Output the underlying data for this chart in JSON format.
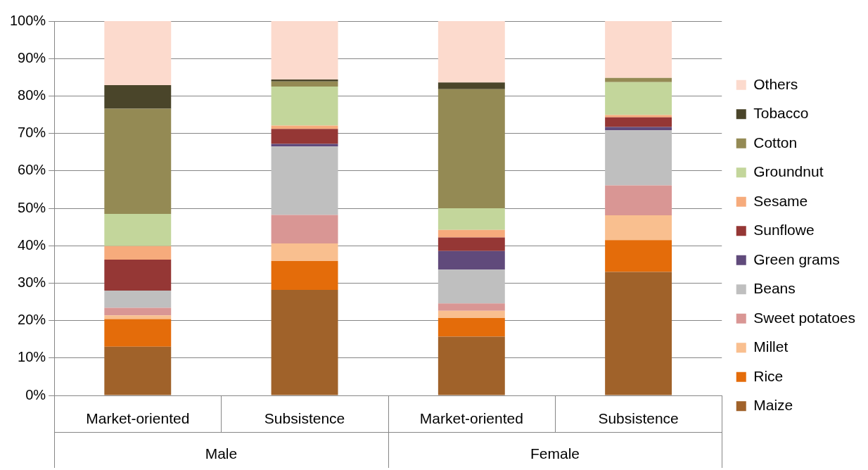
{
  "chart_data": {
    "type": "bar",
    "stacked": true,
    "categories": [
      "Market-oriented",
      "Subsistence",
      "Market-oriented",
      "Subsistence"
    ],
    "series": [
      {
        "name": "Maize",
        "color": "#a0622a",
        "values": [
          13.0,
          28.2,
          15.7,
          33.0
        ]
      },
      {
        "name": "Rice",
        "color": "#e46c0a",
        "values": [
          7.4,
          7.7,
          5.0,
          8.5
        ]
      },
      {
        "name": "Millet",
        "color": "#f9bf8f",
        "values": [
          1.0,
          4.7,
          1.9,
          6.6
        ]
      },
      {
        "name": "Sweet potatoes",
        "color": "#d99694",
        "values": [
          2.0,
          7.6,
          2.0,
          8.0
        ]
      },
      {
        "name": "Beans",
        "color": "#bfbfbf",
        "values": [
          4.6,
          18.3,
          9.0,
          14.7
        ]
      },
      {
        "name": "Green grams",
        "color": "#604a7b",
        "values": [
          0,
          0.7,
          5.0,
          0.9
        ]
      },
      {
        "name": "Sunflowe",
        "color": "#953735",
        "values": [
          8.3,
          4.0,
          3.6,
          2.6
        ]
      },
      {
        "name": "Sesame",
        "color": "#f6ab7c",
        "values": [
          3.6,
          0.9,
          2.0,
          0.6
        ]
      },
      {
        "name": "Groundnut",
        "color": "#c3d69b",
        "values": [
          8.6,
          10.4,
          5.8,
          8.8
        ]
      },
      {
        "name": "Cotton",
        "color": "#948a54",
        "values": [
          28.1,
          1.4,
          31.8,
          1.1
        ]
      },
      {
        "name": "Tobacco",
        "color": "#4a452a",
        "values": [
          6.3,
          0.5,
          1.8,
          0
        ]
      },
      {
        "name": "Others",
        "color": "#fcdacd",
        "values": [
          17.1,
          15.6,
          16.4,
          15.2
        ]
      }
    ],
    "ylim": [
      0,
      100
    ],
    "yticks": [
      {
        "value": 0,
        "label": "0%"
      },
      {
        "value": 10,
        "label": "10%"
      },
      {
        "value": 20,
        "label": "20%"
      },
      {
        "value": 30,
        "label": "30%"
      },
      {
        "value": 40,
        "label": "40%"
      },
      {
        "value": 50,
        "label": "50%"
      },
      {
        "value": 60,
        "label": "60%"
      },
      {
        "value": 70,
        "label": "70%"
      },
      {
        "value": 80,
        "label": "80%"
      },
      {
        "value": 90,
        "label": "90%"
      },
      {
        "value": 100,
        "label": "100%"
      }
    ],
    "grid": "y",
    "legend": "right",
    "annotations": [
      "Male",
      "Female"
    ]
  }
}
